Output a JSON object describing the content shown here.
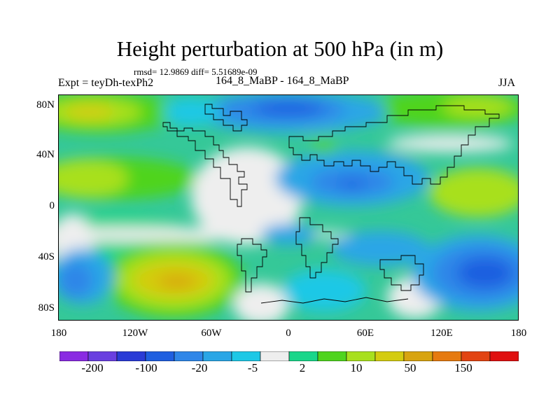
{
  "title": "Height perturbation at 500 hPa (in m)",
  "stats": "rmsd= 12.9869  diff= 5.51689e-09",
  "expt": "Expt = teyDh-texPh2",
  "case": "164_8_MaBP - 164_8_MaBP",
  "season": "JJA",
  "lat_labels": [
    "80N",
    "40N",
    "0",
    "40S",
    "80S"
  ],
  "lon_labels": [
    "180",
    "120W",
    "60W",
    "0",
    "60E",
    "120E",
    "180"
  ],
  "colorbar": {
    "colors": [
      "#8a2be2",
      "#6a3fe0",
      "#2a3bd6",
      "#1f5fe0",
      "#2f86e8",
      "#2aa6e6",
      "#1ec8e6",
      "#eeeeee",
      "#19d68a",
      "#4fd41e",
      "#a8e01e",
      "#d4cc10",
      "#d8a410",
      "#e67a10",
      "#e24412",
      "#e01010"
    ],
    "labels": [
      "-200",
      "-100",
      "-20",
      "-5",
      "2",
      "10",
      "50",
      "150"
    ]
  },
  "colors": {
    "missing": "#eeeeee",
    "coast": "#000000"
  }
}
